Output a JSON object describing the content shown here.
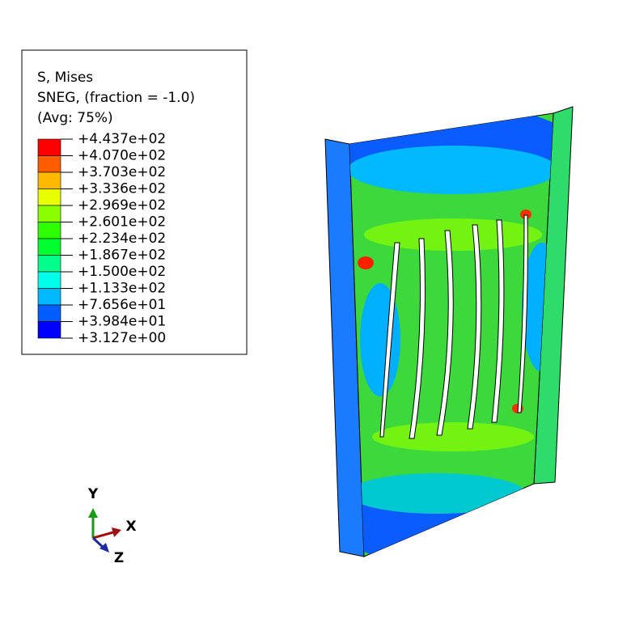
{
  "legend": {
    "title_lines": [
      "S, Mises",
      "SNEG, (fraction = -1.0)",
      "(Avg: 75%)"
    ],
    "labels": [
      "+4.437e+02",
      "+4.070e+02",
      "+3.703e+02",
      "+3.336e+02",
      "+2.969e+02",
      "+2.601e+02",
      "+2.234e+02",
      "+1.867e+02",
      "+1.500e+02",
      "+1.133e+02",
      "+7.656e+01",
      "+3.984e+01",
      "+3.127e+00"
    ],
    "colors": [
      "#ff0000",
      "#ff5d00",
      "#ffb900",
      "#e8ff00",
      "#8bff00",
      "#2eff00",
      "#00ff2e",
      "#00ff8b",
      "#00ffe8",
      "#00b9ff",
      "#005dff",
      "#0000ff"
    ]
  },
  "triad": {
    "y": "Y",
    "x": "X",
    "z": "Z"
  }
}
